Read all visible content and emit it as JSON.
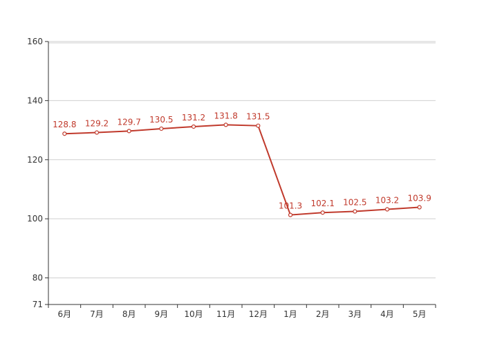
{
  "chart_data": {
    "type": "line",
    "title": "",
    "xlabel": "",
    "ylabel": "",
    "categories": [
      "6月",
      "7月",
      "8月",
      "9月",
      "10月",
      "11月",
      "12月",
      "1月",
      "2月",
      "3月",
      "4月",
      "5月"
    ],
    "series": [
      {
        "values": [
          128.8,
          129.2,
          129.7,
          130.5,
          131.2,
          131.8,
          131.5,
          101.3,
          102.1,
          102.5,
          103.2,
          103.9
        ],
        "color": "#c0392b"
      }
    ],
    "data_labels": [
      "128.8",
      "129.2",
      "129.7",
      "130.5",
      "131.2",
      "131.8",
      "131.5",
      "101.3",
      "102.1",
      "102.5",
      "103.2",
      "103.9"
    ],
    "ylim": [
      71,
      160
    ],
    "yticks": [
      "71",
      "80",
      "100",
      "120",
      "140",
      "160"
    ],
    "grid": true,
    "legend": "none"
  }
}
